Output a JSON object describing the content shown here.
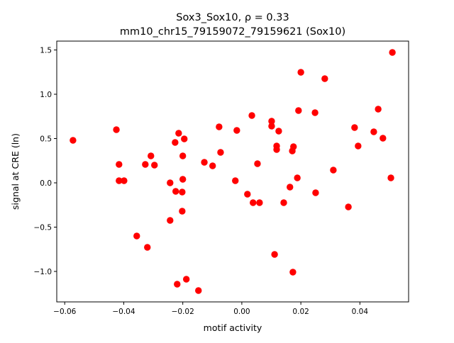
{
  "chart_data": {
    "type": "scatter",
    "title_line1": "Sox3_Sox10, ρ = 0.33",
    "title_line2": "mm10_chr15_79159072_79159621 (Sox10)",
    "xlabel": "motif activity",
    "ylabel": "signal at CRE (ln)",
    "xlim": [
      -0.0627,
      0.0565
    ],
    "ylim": [
      -1.344,
      1.6
    ],
    "xticks": [
      -0.06,
      -0.04,
      -0.02,
      0.0,
      0.02,
      0.04
    ],
    "xtick_labels": [
      "−0.06",
      "−0.04",
      "−0.02",
      "0.00",
      "0.02",
      "0.04"
    ],
    "yticks": [
      -1.0,
      -0.5,
      0.0,
      0.5,
      1.0,
      1.5
    ],
    "ytick_labels": [
      "−1.0",
      "−0.5",
      "0.0",
      "0.5",
      "1.0",
      "1.5"
    ],
    "grid": false,
    "marker_color": "#ff0000",
    "points": [
      [
        -0.0572,
        0.48
      ],
      [
        -0.0425,
        0.6
      ],
      [
        -0.0416,
        0.208
      ],
      [
        -0.0416,
        0.024
      ],
      [
        -0.0399,
        0.024
      ],
      [
        -0.0356,
        -0.6
      ],
      [
        -0.0327,
        0.208
      ],
      [
        -0.032,
        -0.728
      ],
      [
        -0.0308,
        0.304
      ],
      [
        -0.0296,
        0.2
      ],
      [
        -0.0243,
        0.0
      ],
      [
        -0.0243,
        -0.424
      ],
      [
        -0.0226,
        0.456
      ],
      [
        -0.0224,
        -0.096
      ],
      [
        -0.0219,
        -1.144
      ],
      [
        -0.0214,
        0.56
      ],
      [
        -0.0202,
        -0.104
      ],
      [
        -0.0202,
        -0.32
      ],
      [
        -0.02,
        0.304
      ],
      [
        -0.02,
        0.04
      ],
      [
        -0.0195,
        0.496
      ],
      [
        -0.0188,
        -1.088
      ],
      [
        -0.0147,
        -1.216
      ],
      [
        -0.0127,
        0.232
      ],
      [
        -0.0099,
        0.192
      ],
      [
        -0.0077,
        0.632
      ],
      [
        -0.0072,
        0.344
      ],
      [
        -0.0022,
        0.024
      ],
      [
        -0.0017,
        0.592
      ],
      [
        0.0019,
        -0.128
      ],
      [
        0.0034,
        0.76
      ],
      [
        0.0038,
        -0.224
      ],
      [
        0.0053,
        0.216
      ],
      [
        0.006,
        -0.224
      ],
      [
        0.0101,
        0.696
      ],
      [
        0.0101,
        0.64
      ],
      [
        0.0111,
        -0.808
      ],
      [
        0.0118,
        0.376
      ],
      [
        0.0118,
        0.416
      ],
      [
        0.0125,
        0.584
      ],
      [
        0.0142,
        -0.224
      ],
      [
        0.0163,
        -0.048
      ],
      [
        0.0171,
        0.36
      ],
      [
        0.0173,
        -1.008
      ],
      [
        0.0175,
        0.408
      ],
      [
        0.0188,
        0.056
      ],
      [
        0.0192,
        0.816
      ],
      [
        0.02,
        1.248
      ],
      [
        0.0248,
        0.792
      ],
      [
        0.025,
        -0.112
      ],
      [
        0.0281,
        1.176
      ],
      [
        0.031,
        0.144
      ],
      [
        0.0361,
        -0.272
      ],
      [
        0.0382,
        0.624
      ],
      [
        0.0394,
        0.416
      ],
      [
        0.0447,
        0.576
      ],
      [
        0.0462,
        0.832
      ],
      [
        0.0478,
        0.504
      ],
      [
        0.0505,
        0.056
      ],
      [
        0.051,
        1.472
      ]
    ]
  }
}
